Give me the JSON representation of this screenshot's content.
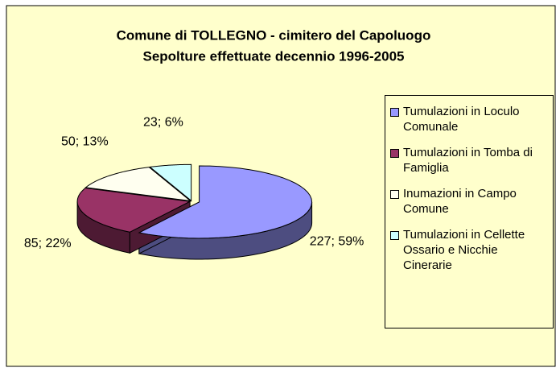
{
  "chart_data": {
    "type": "pie",
    "title": "Comune di TOLLEGNO - cimitero del Capoluogo",
    "subtitle": "Sepolture effettuate decennio 1996-2005",
    "categories": [
      "Tumulazioni in Loculo Comunale",
      "Tumulazioni in Tomba di Famiglia",
      "Inumazioni in Campo Comune",
      "Tumulazioni in Cellette Ossario e Nicchie Cinerarie"
    ],
    "values": [
      227,
      85,
      50,
      23
    ],
    "value_labels": [
      "227; 59%",
      "85; 22%",
      "50; 13%",
      "23; 6%"
    ],
    "colors": [
      "#9999ff",
      "#993366",
      "#fffff0",
      "#ccffff"
    ],
    "legend": "right"
  }
}
